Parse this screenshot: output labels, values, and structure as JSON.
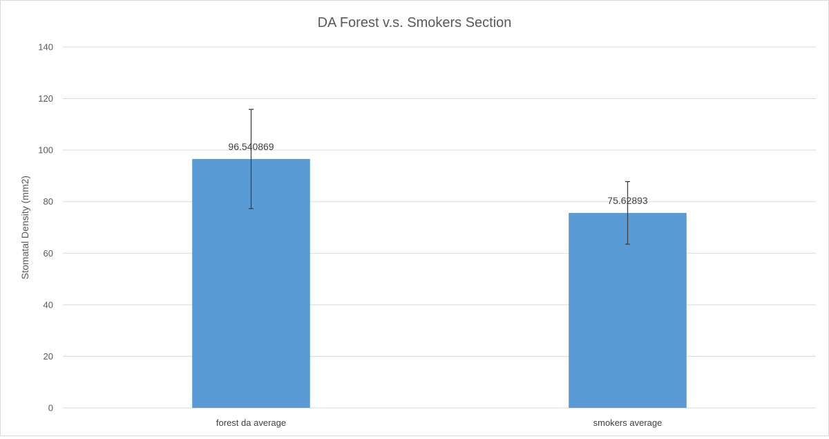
{
  "chart_data": {
    "type": "bar",
    "title": "DA Forest v.s. Smokers Section",
    "xlabel": "",
    "ylabel": "Stomatal Density (mm2)",
    "categories": [
      "forest da average",
      "smokers average"
    ],
    "values": [
      96.540869,
      75.62893
    ],
    "data_labels": [
      "96.540869",
      "75.62893"
    ],
    "error_bars": [
      {
        "low": 77.3,
        "high": 115.8
      },
      {
        "low": 63.5,
        "high": 87.8
      }
    ],
    "ylim": [
      0,
      140
    ],
    "yticks": [
      0,
      20,
      40,
      60,
      80,
      100,
      120,
      140
    ],
    "grid": true,
    "legend": "none",
    "bar_color": "#5b9bd5",
    "grid_color": "#d9d9d9",
    "error_bar_color": "#404040"
  }
}
